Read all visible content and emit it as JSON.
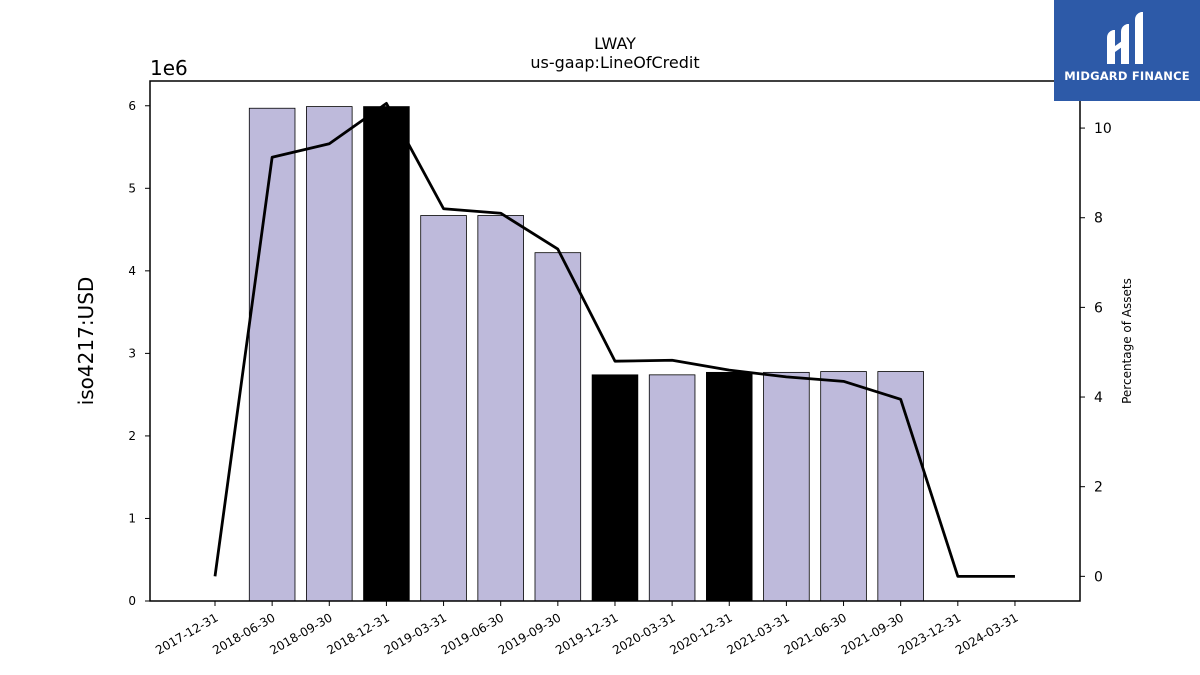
{
  "chart_data": {
    "type": "bar",
    "title": "LWAY",
    "subtitle": "us-gaap:LineOfCredit",
    "ylabel": "iso4217:USD",
    "y2label": "Percentage of Assets",
    "y_exponent_label": "1e6",
    "ylim": [
      0,
      6300000
    ],
    "y2lim": [
      -0.55,
      11.05
    ],
    "yticks": [
      0,
      1,
      2,
      3,
      4,
      5,
      6
    ],
    "y_tick_scale": 1000000,
    "y2ticks": [
      0,
      2,
      4,
      6,
      8,
      10
    ],
    "grid": false,
    "categories": [
      "2017-12-31",
      "2018-06-30",
      "2018-09-30",
      "2018-12-31",
      "2019-03-31",
      "2019-06-30",
      "2019-09-30",
      "2019-12-31",
      "2020-03-31",
      "2020-12-31",
      "2021-03-31",
      "2021-06-30",
      "2021-09-30",
      "2023-12-31",
      "2024-03-31"
    ],
    "series": [
      {
        "type": "bar",
        "axis": "left",
        "values": [
          null,
          5970000,
          5990000,
          5990000,
          4670000,
          4670000,
          4220000,
          2740000,
          2740000,
          2770000,
          2770000,
          2780000,
          2780000,
          null,
          null
        ],
        "colors": [
          "#bebadb",
          "#bebadb",
          "#bebadb",
          "#000000",
          "#bebadb",
          "#bebadb",
          "#bebadb",
          "#000000",
          "#bebadb",
          "#000000",
          "#bebadb",
          "#bebadb",
          "#bebadb",
          "#bebadb",
          "#bebadb"
        ]
      },
      {
        "type": "line",
        "axis": "right",
        "color": "#000000",
        "values": [
          0.0,
          9.35,
          9.65,
          10.55,
          8.2,
          8.1,
          7.3,
          4.8,
          4.82,
          4.6,
          4.45,
          4.35,
          3.95,
          0.0,
          0.0
        ]
      }
    ]
  },
  "logo": {
    "text": "MIDGARD FINANCE",
    "background": "#2d5aa8"
  }
}
